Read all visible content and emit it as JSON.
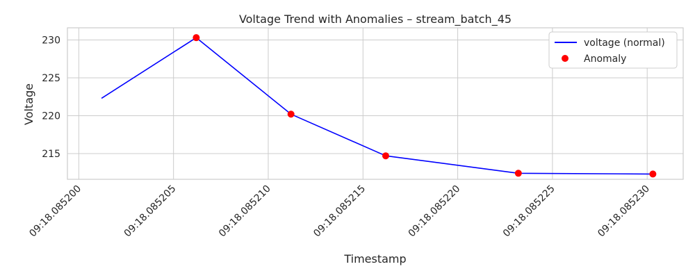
{
  "chart_data": {
    "type": "line",
    "title": "Voltage Trend with Anomalies – stream_batch_45",
    "xlabel": "Timestamp",
    "ylabel": "Voltage",
    "x_tick_labels": [
      "09:18.085200",
      "09:18.085205",
      "09:18.085210",
      "09:18.085215",
      "09:18.085220",
      "09:18.085225",
      "09:18.085230"
    ],
    "y_ticks": [
      215,
      220,
      225,
      230
    ],
    "xlim": [
      199.4,
      231.9
    ],
    "ylim": [
      211.6,
      231.6
    ],
    "grid": true,
    "legend_position": "top-right",
    "series": [
      {
        "name": "voltage (normal)",
        "color": "#0000ff",
        "x": [
          201.2,
          206.2,
          211.2,
          216.2,
          223.2,
          230.3
        ],
        "y": [
          222.3,
          230.3,
          220.2,
          214.7,
          212.4,
          212.3
        ]
      }
    ],
    "anomalies": {
      "name": "Anomaly",
      "color": "#ff0000",
      "x": [
        206.2,
        211.2,
        216.2,
        223.2,
        230.3
      ],
      "y": [
        230.3,
        220.2,
        214.7,
        212.4,
        212.3
      ]
    }
  }
}
